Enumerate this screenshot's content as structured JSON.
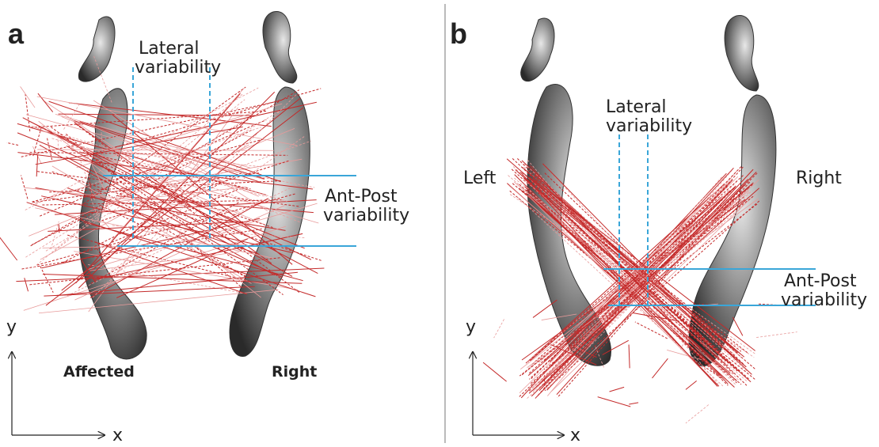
{
  "panels": [
    {
      "label": "a",
      "lateral_label": [
        "Lateral",
        "variability"
      ],
      "ap_label": [
        "Ant-Post",
        "variability"
      ],
      "left_foot": "Affected",
      "right_foot": "Right",
      "y_axis": "y",
      "x_axis": "x"
    },
    {
      "label": "b",
      "lateral_label": [
        "Lateral",
        "variability"
      ],
      "ap_label": [
        "Ant-Post",
        "variability"
      ],
      "left_foot": "Left",
      "right_foot": "Right",
      "y_axis": "y",
      "x_axis": "x"
    }
  ]
}
